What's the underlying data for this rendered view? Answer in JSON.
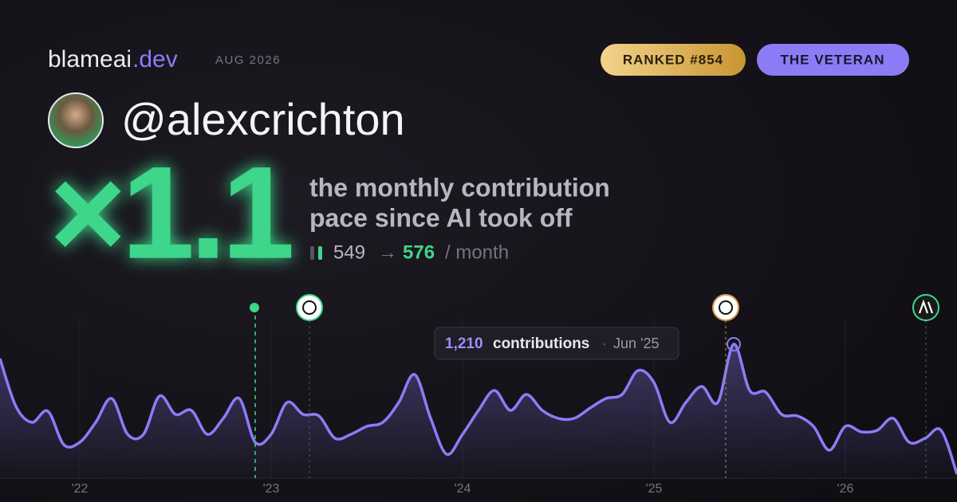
{
  "header": {
    "brand": "blameai",
    "brand_tld": ".dev",
    "date": "AUG 2026",
    "rank": "RANKED #854",
    "badge": "THE VETERAN"
  },
  "profile": {
    "handle": "@alexcrichton"
  },
  "headline": {
    "multiplier": "×1.1",
    "line1": "the monthly contribution",
    "line2": "pace since AI took off",
    "before": 549,
    "arrow": "→",
    "after": 576,
    "unit": "/ month"
  },
  "tooltip": {
    "value": "1,210",
    "label": "contributions",
    "separator": "·",
    "date": "Jun '25"
  },
  "chart_data": {
    "type": "area",
    "color": "#8b7cf6",
    "categories": [
      null,
      null,
      null,
      null,
      null,
      "'22",
      null,
      null,
      null,
      null,
      null,
      null,
      null,
      null,
      null,
      null,
      null,
      "'23",
      null,
      null,
      null,
      null,
      null,
      null,
      null,
      null,
      null,
      null,
      null,
      "'24",
      null,
      null,
      null,
      null,
      null,
      null,
      null,
      null,
      null,
      null,
      null,
      "'25",
      null,
      null,
      null,
      null,
      null,
      null,
      null,
      null,
      null,
      null,
      null,
      "'26",
      null,
      null,
      null,
      null,
      null,
      null,
      null
    ],
    "values": [
      1080,
      648,
      504,
      605,
      302,
      324,
      504,
      720,
      396,
      396,
      742,
      576,
      612,
      396,
      540,
      720,
      324,
      396,
      684,
      576,
      562,
      360,
      396,
      468,
      504,
      684,
      936,
      540,
      216,
      396,
      612,
      792,
      612,
      756,
      612,
      540,
      540,
      634,
      720,
      756,
      972,
      864,
      504,
      684,
      828,
      684,
      1210,
      792,
      778,
      576,
      562,
      468,
      252,
      468,
      418,
      432,
      540,
      324,
      360,
      432,
      36
    ],
    "ylim": [
      0,
      1300
    ]
  }
}
